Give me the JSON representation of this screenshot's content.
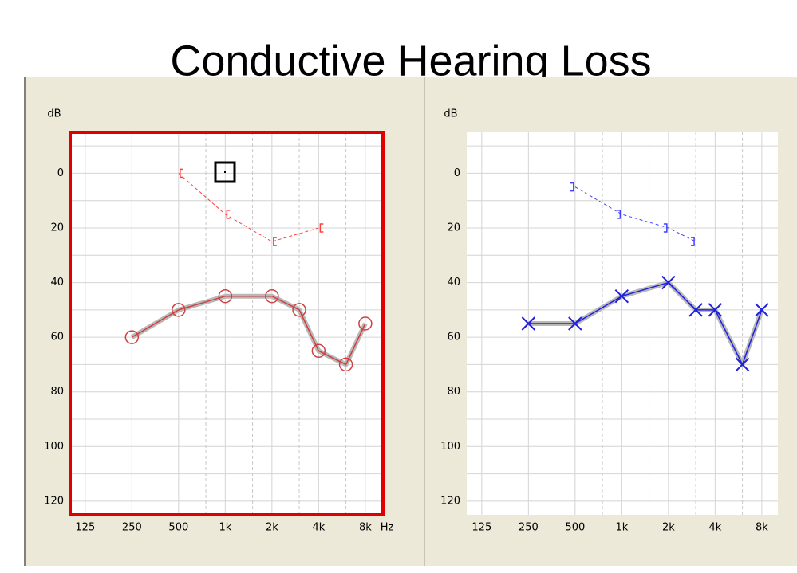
{
  "title": "Conductive Hearing Loss",
  "chart_data": [
    {
      "type": "line",
      "y_label": "dB",
      "x_label": "Hz",
      "x_scale": "log",
      "y_inverted": true,
      "selected": true,
      "selection_color": "#e00000",
      "xlim": [
        100,
        10400
      ],
      "ylim": [
        -15,
        125
      ],
      "xticks": [
        125,
        250,
        500,
        {
          "value": 1000,
          "label": "1k"
        },
        {
          "value": 2000,
          "label": "2k"
        },
        {
          "value": 4000,
          "label": "4k"
        },
        {
          "value": 8000,
          "label": "8k"
        }
      ],
      "xminor": [
        750,
        1500,
        3000,
        6000
      ],
      "yticks": [
        0,
        20,
        40,
        60,
        80,
        100,
        120
      ],
      "yminor": [
        -10,
        10,
        30,
        50,
        70,
        90,
        110
      ],
      "series": [
        {
          "color": "#d04040",
          "marker": "o",
          "style": "solid",
          "band": true,
          "x": [
            250,
            500,
            1000,
            2000,
            3000,
            4000,
            6000,
            8000
          ],
          "values": [
            60,
            50,
            45,
            45,
            50,
            65,
            70,
            55
          ]
        },
        {
          "color": "#ff4040",
          "marker": "[",
          "style": "dashed",
          "band": false,
          "x": [
            500,
            1000,
            2000,
            4000
          ],
          "values": [
            0,
            15,
            25,
            20
          ]
        }
      ]
    },
    {
      "type": "line",
      "y_label": "dB",
      "x_scale": "log",
      "y_inverted": true,
      "selected": false,
      "xlim": [
        100,
        10400
      ],
      "ylim": [
        -15,
        125
      ],
      "xticks": [
        125,
        250,
        500,
        {
          "value": 1000,
          "label": "1k"
        },
        {
          "value": 2000,
          "label": "2k"
        },
        {
          "value": 4000,
          "label": "4k"
        },
        {
          "value": 8000,
          "label": "8k"
        }
      ],
      "xminor": [
        750,
        1500,
        3000,
        6000
      ],
      "yticks": [
        0,
        20,
        40,
        60,
        80,
        100,
        120
      ],
      "yminor": [
        -10,
        10,
        30,
        50,
        70,
        90,
        110
      ],
      "series": [
        {
          "color": "#2020e0",
          "marker": "x",
          "style": "solid",
          "band": true,
          "x": [
            250,
            500,
            1000,
            2000,
            3000,
            4000,
            6000,
            8000
          ],
          "values": [
            55,
            55,
            45,
            40,
            50,
            50,
            70,
            50
          ]
        },
        {
          "color": "#4040ff",
          "marker": "]",
          "style": "dashed",
          "band": false,
          "x": [
            500,
            1000,
            2000,
            3000
          ],
          "values": [
            5,
            15,
            20,
            25
          ]
        }
      ]
    }
  ]
}
